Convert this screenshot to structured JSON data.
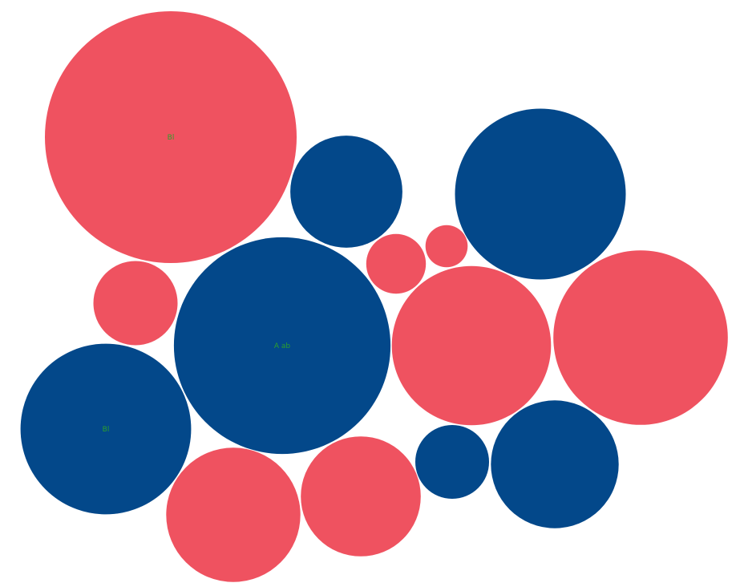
{
  "chart_data": {
    "type": "bubble-pack",
    "colors": {
      "group_a": "#ef5260",
      "group_b": "#03488a",
      "label": "#2ca02c"
    },
    "bubbles": [
      {
        "group": "group_a",
        "label": "Bl",
        "value": 100
      },
      {
        "group": "group_b",
        "label": "",
        "value": 19.8
      },
      {
        "group": "group_b",
        "label": "",
        "value": 46.0
      },
      {
        "group": "group_a",
        "label": "",
        "value": 11.2
      },
      {
        "group": "group_a",
        "label": "",
        "value": 5.6
      },
      {
        "group": "group_a",
        "label": "",
        "value": 2.8
      },
      {
        "group": "group_b",
        "label": "A ab",
        "value": 74.0
      },
      {
        "group": "group_a",
        "label": "",
        "value": 40.0
      },
      {
        "group": "group_a",
        "label": "",
        "value": 48.0
      },
      {
        "group": "group_b",
        "label": "Bl",
        "value": 45.9
      },
      {
        "group": "group_a",
        "label": "",
        "value": 28.4
      },
      {
        "group": "group_a",
        "label": "",
        "value": 22.7
      },
      {
        "group": "group_b",
        "label": "",
        "value": 8.6
      },
      {
        "group": "group_b",
        "label": "",
        "value": 25.8
      }
    ]
  }
}
